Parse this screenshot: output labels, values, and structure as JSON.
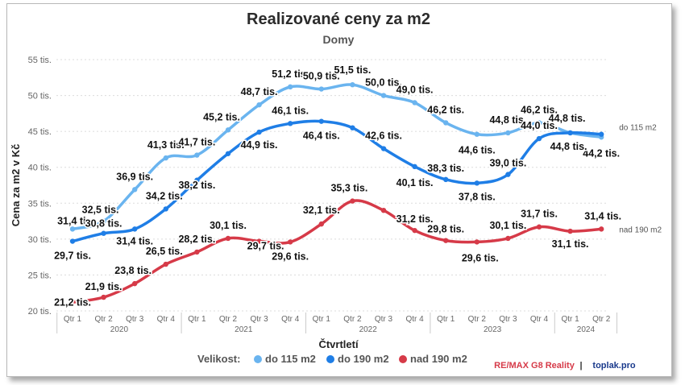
{
  "chart_data": {
    "type": "line",
    "title": "Realizované ceny za m2",
    "subtitle": "Domy",
    "ylabel": "Cena za m2 v Kč",
    "xlabel": "Čtvrtletí",
    "ylim": [
      20,
      55
    ],
    "yticks": [
      {
        "value": 20,
        "label": "20 tis."
      },
      {
        "value": 25,
        "label": "25 tis."
      },
      {
        "value": 30,
        "label": "30 tis."
      },
      {
        "value": 35,
        "label": "35 tis."
      },
      {
        "value": 40,
        "label": "40 tis."
      },
      {
        "value": 45,
        "label": "45 tis."
      },
      {
        "value": 50,
        "label": "50 tis."
      },
      {
        "value": 55,
        "label": "55 tis."
      }
    ],
    "categories": [
      "Qtr 1",
      "Qtr 2",
      "Qtr 3",
      "Qtr 4",
      "Qtr 1",
      "Qtr 2",
      "Qtr 3",
      "Qtr 4",
      "Qtr 1",
      "Qtr 2",
      "Qtr 3",
      "Qtr 4",
      "Qtr 1",
      "Qtr 2",
      "Qtr 3",
      "Qtr 4",
      "Qtr 1",
      "Qtr 2"
    ],
    "years": [
      "2020",
      "2021",
      "2022",
      "2023",
      "2024"
    ],
    "grid": true,
    "legend_position": "bottom",
    "legend_title": "Velikost:",
    "series": [
      {
        "name": "do  115 m2",
        "end_label": "do  115 m2",
        "color": "#6ab4ef",
        "values": [
          31.4,
          32.5,
          36.9,
          41.3,
          41.7,
          45.2,
          48.7,
          51.2,
          50.9,
          51.5,
          50.0,
          49.0,
          46.2,
          44.6,
          44.8,
          46.2,
          44.8,
          44.2
        ],
        "labels": [
          "31,4 tis.",
          "32,5 tis.",
          "36,9 tis.",
          "41,3 tis.",
          "41,7 tis.",
          "45,2 tis.",
          "48,7 tis.",
          "51,2 tis.",
          "50,9 tis.",
          "51,5 tis.",
          "50,0 tis.",
          "49,0 tis.",
          "46,2 tis.",
          "44,6 tis.",
          "44,8 tis.",
          "46,2 tis.",
          "44,8 tis.",
          "44,2 tis."
        ]
      },
      {
        "name": "do  190 m2",
        "end_label": "",
        "color": "#1f7ee6",
        "values": [
          29.7,
          30.8,
          31.4,
          34.2,
          38.2,
          41.9,
          44.9,
          46.1,
          46.4,
          45.5,
          42.6,
          40.1,
          38.3,
          37.8,
          39.0,
          44.0,
          44.8,
          44.6
        ],
        "labels": [
          "29,7 tis.",
          "30,8 tis.",
          "31,4 tis.",
          "34,2 tis.",
          "38,2 tis.",
          "",
          "44,9 tis.",
          "46,1 tis.",
          "46,4 tis.",
          "",
          "42,6 tis.",
          "40,1 tis.",
          "38,3 tis.",
          "37,8 tis.",
          "39,0 tis.",
          "44,0 tis.",
          "44,8 tis.",
          ""
        ]
      },
      {
        "name": "nad 190 m2",
        "end_label": "nad 190 m2",
        "color": "#d63a48",
        "values": [
          21.2,
          21.9,
          23.8,
          26.5,
          28.2,
          30.1,
          29.7,
          29.6,
          32.1,
          35.3,
          34.0,
          31.2,
          29.8,
          29.6,
          30.1,
          31.7,
          31.1,
          31.4
        ],
        "labels": [
          "21,2 tis.",
          "21,9 tis.",
          "23,8 tis.",
          "26,5 tis.",
          "28,2 tis.",
          "30,1 tis.",
          "29,7 tis.",
          "29,6 tis.",
          "32,1 tis.",
          "35,3 tis.",
          "",
          "31,2 tis.",
          "29,8 tis.",
          "29,6 tis.",
          "30,1 tis.",
          "31,7 tis.",
          "31,1 tis.",
          "31,4 tis."
        ]
      }
    ]
  },
  "credits": {
    "remax": "RE/MAX G8 Reality",
    "separator": "|",
    "toplak": "toplak.pro",
    "remax_color": "#d63a48",
    "toplak_color": "#1a3a8c"
  }
}
